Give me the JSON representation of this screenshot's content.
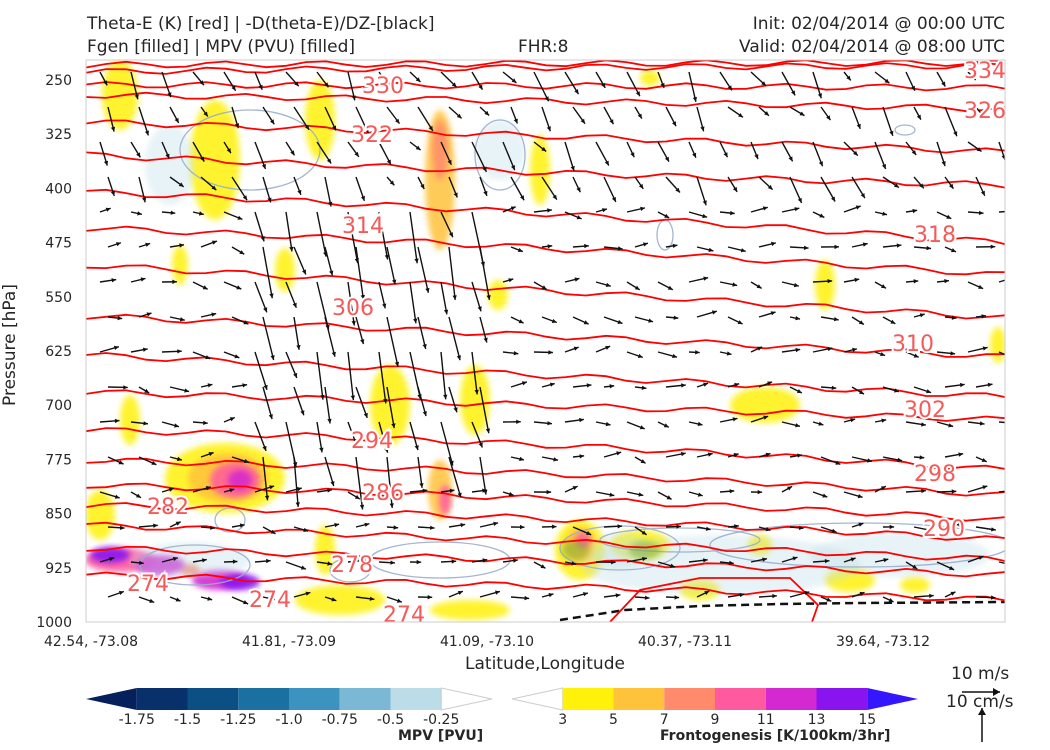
{
  "header": {
    "title_line1": "Theta-E (K) [red] | -D(theta-E)/DZ-[black]",
    "title_line2": "Fgen [filled] | MPV (PVU) [filled]",
    "fhr": "FHR:8",
    "init": "Init: 02/04/2014 @ 00:00 UTC",
    "valid": "Valid: 02/04/2014 @ 08:00 UTC"
  },
  "chart_data": {
    "type": "cross-section",
    "xlabel": "Latitude,Longitude",
    "ylabel": "Pressure [hPa]",
    "x_ticks": [
      "42.54, -73.08",
      "41.81, -73.09",
      "41.09, -73.10",
      "40.37, -73.11",
      "39.64, -73.12"
    ],
    "y_ticks": [
      250,
      325,
      400,
      475,
      550,
      625,
      700,
      775,
      850,
      925,
      1000
    ],
    "ylim": [
      1000,
      200
    ],
    "y_inverted": true,
    "theta_e_labels": [
      "330",
      "322",
      "314",
      "306",
      "294",
      "286",
      "282",
      "278",
      "274",
      "274",
      "274",
      "334",
      "326",
      "318",
      "310",
      "302",
      "298",
      "290"
    ],
    "colors": {
      "theta_e": "#ff0000",
      "theta_e_label": "#f45a5a",
      "mpv_contour": "#9aaecc",
      "vector": "#111111"
    },
    "mpv_colorbar": {
      "label": "MPV [PVU]",
      "ticks": [
        "-1.75",
        "-1.5",
        "-1.25",
        "-1.0",
        "-0.75",
        "-0.5",
        "-0.25"
      ],
      "colors": [
        "#06205e",
        "#08306b",
        "#0b4f85",
        "#1a70a0",
        "#3d93bf",
        "#7ab8d6",
        "#bcdde8",
        "#ffffff"
      ]
    },
    "fgen_colorbar": {
      "label": "Frontogenesis [K/100km/3hr]",
      "ticks": [
        "3",
        "5",
        "7",
        "9",
        "11",
        "13",
        "15"
      ],
      "colors": [
        "#ffffff",
        "#fff10a",
        "#ffc23a",
        "#ff8a6c",
        "#ff5aa0",
        "#d428d0",
        "#8a14f0",
        "#3416ff"
      ]
    },
    "vector_scale": {
      "u": "10 m/s",
      "w": "10 cm/s"
    }
  }
}
